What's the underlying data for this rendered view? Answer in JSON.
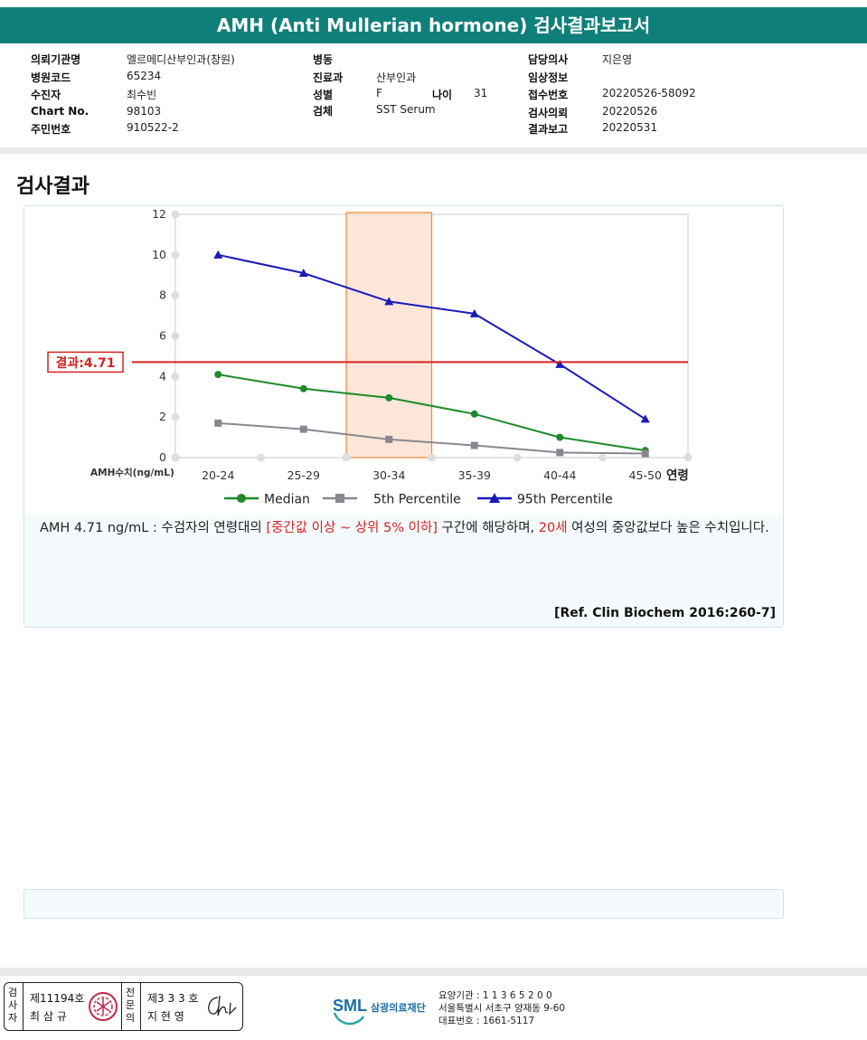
{
  "header": {
    "title": "AMH (Anti Mullerian hormone) 검사결과보고서"
  },
  "info": {
    "col1": [
      {
        "label": "의뢰기관명",
        "value": "엘르메디산부인과(창원)"
      },
      {
        "label": "병원코드",
        "value": "65234"
      },
      {
        "label": "수진자",
        "value": "최수빈"
      },
      {
        "label": "Chart No.",
        "value": "98103"
      },
      {
        "label": "주민번호",
        "value": "910522-2"
      }
    ],
    "col2": [
      {
        "label": "병동",
        "value": ""
      },
      {
        "label": "진료과",
        "value": "산부인과"
      },
      {
        "label": "성별",
        "value": "F"
      },
      {
        "label": "검체",
        "value": "SST Serum"
      }
    ],
    "age": {
      "label": "나이",
      "value": "31"
    },
    "col3": [
      {
        "label": "담당의사",
        "value": "지은영"
      },
      {
        "label": "임상정보",
        "value": ""
      },
      {
        "label": "접수번호",
        "value": "20220526-58092"
      },
      {
        "label": "검사의뢰",
        "value": "20220526"
      },
      {
        "label": "결과보고",
        "value": "20220531"
      }
    ]
  },
  "section_title": "검사결과",
  "chart_data": {
    "type": "line",
    "categories": [
      "20-24",
      "25-29",
      "30-34",
      "35-39",
      "40-44",
      "45-50"
    ],
    "xlabel": "연령",
    "ylabel": "AMH수치(ng/mL)",
    "ylim": [
      0,
      12
    ],
    "yticks": [
      0,
      2,
      4,
      6,
      8,
      10,
      12
    ],
    "series": [
      {
        "name": "Median",
        "color": "#1e8a2a",
        "marker": "circle",
        "values": [
          4.1,
          3.4,
          2.95,
          2.15,
          1.0,
          0.35
        ]
      },
      {
        "name": "5th Percentile",
        "color": "#8a8790",
        "marker": "square",
        "values": [
          1.7,
          1.4,
          0.9,
          0.6,
          0.25,
          0.2
        ]
      },
      {
        "name": "95th Percentile",
        "color": "#1a1ab8",
        "marker": "triangle",
        "values": [
          10.0,
          9.1,
          7.7,
          7.1,
          4.6,
          1.9
        ]
      }
    ],
    "result": {
      "label": "결과:4.71",
      "value": 4.71,
      "color": "#d42424"
    },
    "highlight_category": "30-34",
    "legend_position": "bottom"
  },
  "description": {
    "part1": "AMH  4.71 ng/mL : 수검자의 연령대의 ",
    "range": "[중간값 이상 ~ 상위 5% 이하]",
    "part2": "  구간에 해당하며, ",
    "age": "20세",
    "part3": " 여성의 중앙값보다 높은 수치입니다."
  },
  "reference": "[Ref. Clin Biochem 2016:260-7]",
  "footer": {
    "inspector_label": "검사자",
    "inspector_no": "제11194호",
    "inspector_name": "최 삼 규",
    "specialist_label": "전문의",
    "specialist_no": "제3 3 3 호",
    "specialist_name": "지 현 영",
    "logo": "SML",
    "org_name": "삼광의료재단",
    "org_lines": [
      "요양기관 : 1 1 3 6 5 2 0 0",
      "서울특별시 서초구 양재동 9-60",
      "대표번호 : 1661-5117"
    ]
  }
}
